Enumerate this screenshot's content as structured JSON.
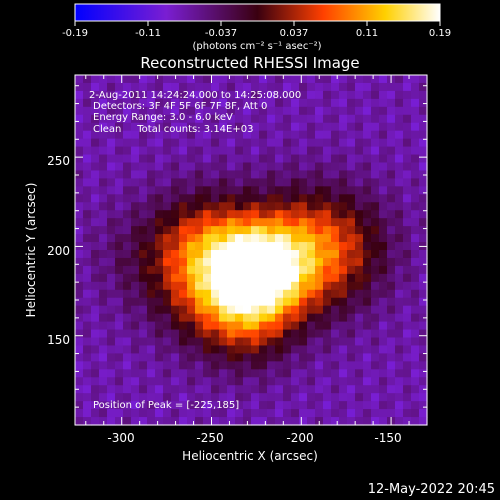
{
  "colorbar": {
    "ticks": [
      "-0.19",
      "-0.11",
      "-0.037",
      "0.037",
      "0.11",
      "0.19"
    ],
    "values": [
      -0.19,
      -0.11,
      -0.037,
      0.037,
      0.11,
      0.19
    ],
    "unit_label": "(photons cm⁻² s⁻¹ asec⁻²)",
    "colormap": [
      "#0000ff",
      "#7a1ed2",
      "#3a0010",
      "#ff4000",
      "#ffd000",
      "#ffffff"
    ]
  },
  "annotations": {
    "time": "2-Aug-2011 14:24:24.000 to 14:25:08.000",
    "detectors": "Detectors: 3F 4F 5F 6F 7F 8F, Att 0",
    "energy": "Energy Range: 3.0 - 6.0 keV",
    "clean": "Clean     Total counts: 3.14E+03",
    "peak": "Position of Peak = [-225,185]"
  },
  "footer": {
    "date": "12-May-2022 20:45"
  },
  "chart_data": {
    "type": "heatmap",
    "title": "Reconstructed RHESSI Image",
    "xlabel": "Heliocentric X (arcsec)",
    "ylabel": "Heliocentric Y (arcsec)",
    "xlim": [
      -326,
      -130
    ],
    "ylim": [
      100,
      296
    ],
    "x_ticks": [
      -300,
      -250,
      -200,
      -150
    ],
    "y_ticks": [
      150,
      200,
      250
    ],
    "grid": false,
    "peak": [
      -225,
      185
    ],
    "clim": [
      -0.19,
      0.19
    ],
    "colormap": [
      "#0000ff",
      "#7a1ed2",
      "#3a0010",
      "#ff4000",
      "#ffd000",
      "#ffffff"
    ]
  }
}
